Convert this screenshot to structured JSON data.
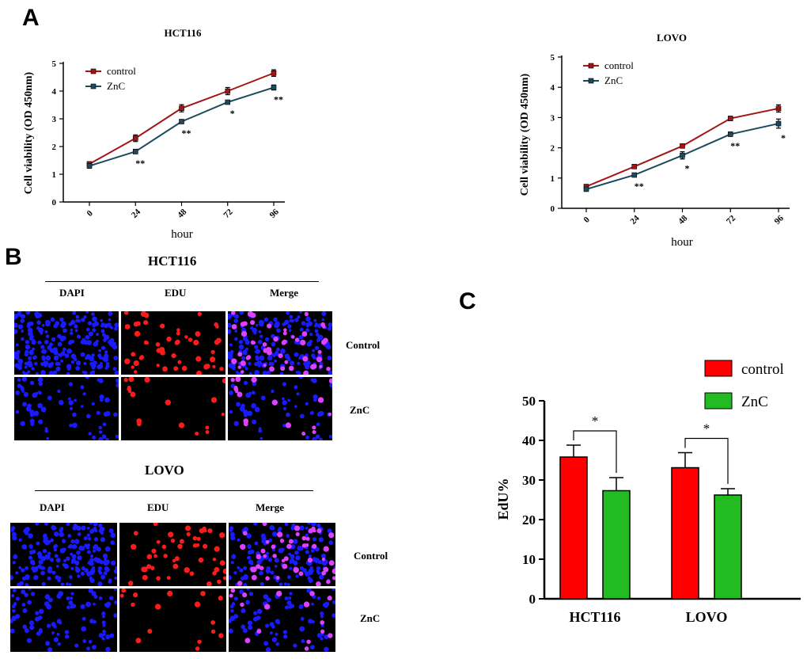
{
  "panels": {
    "a": "A",
    "b": "B",
    "c": "C"
  },
  "colors": {
    "control_line": "#a31515",
    "znc_line": "#1c4a5e",
    "control_bar": "#ff0000",
    "znc_bar": "#22bb22",
    "dapi": "#1a1aff",
    "edu": "#ff1a1a",
    "merge": "#e040ff"
  },
  "chart_data": [
    {
      "type": "line",
      "title": "HCT116",
      "xlabel": "hour",
      "ylabel": "Cell viability (OD 450nm)",
      "x": [
        "0",
        "24",
        "48",
        "72",
        "96"
      ],
      "ylim": [
        0,
        5
      ],
      "yticks": [
        "0",
        "1",
        "2",
        "3",
        "4",
        "5"
      ],
      "series": [
        {
          "name": "control",
          "values": [
            1.37,
            2.3,
            3.38,
            4.0,
            4.65
          ],
          "errors": [
            0.08,
            0.12,
            0.13,
            0.13,
            0.12
          ]
        },
        {
          "name": "ZnC",
          "values": [
            1.3,
            1.82,
            2.9,
            3.6,
            4.13
          ],
          "errors": [
            0.08,
            0.08,
            0.07,
            0.06,
            0.09
          ]
        }
      ],
      "significance": [
        "",
        "**",
        "**",
        "*",
        "**"
      ],
      "legend": "top-left"
    },
    {
      "type": "line",
      "title": "LOVO",
      "xlabel": "hour",
      "ylabel": "Cell viability (OD 450nm)",
      "x": [
        "0",
        "24",
        "48",
        "72",
        "96"
      ],
      "ylim": [
        0,
        5
      ],
      "yticks": [
        "0",
        "1",
        "2",
        "3",
        "4",
        "5"
      ],
      "series": [
        {
          "name": "control",
          "values": [
            0.72,
            1.38,
            2.06,
            2.97,
            3.3
          ],
          "errors": [
            0.06,
            0.06,
            0.06,
            0.07,
            0.12
          ]
        },
        {
          "name": "ZnC",
          "values": [
            0.63,
            1.1,
            1.75,
            2.45,
            2.8
          ],
          "errors": [
            0.05,
            0.05,
            0.12,
            0.07,
            0.15
          ]
        }
      ],
      "significance": [
        "",
        "**",
        "*",
        "**",
        "*"
      ],
      "legend": "top-left"
    },
    {
      "type": "bar",
      "xlabel": "",
      "ylabel": "EdU%",
      "categories": [
        "HCT116",
        "LOVO"
      ],
      "ylim": [
        0,
        50
      ],
      "yticks": [
        "0",
        "10",
        "20",
        "30",
        "40",
        "50"
      ],
      "series": [
        {
          "name": "control",
          "values": [
            35.8,
            33.1
          ],
          "errors": [
            3.0,
            3.8
          ]
        },
        {
          "name": "ZnC",
          "values": [
            27.3,
            26.2
          ],
          "errors": [
            3.3,
            1.6
          ]
        }
      ],
      "significance": [
        "*",
        "*"
      ],
      "legend": "top-right"
    }
  ],
  "microscopy": {
    "hct116": {
      "title": "HCT116",
      "columns": [
        "DAPI",
        "EDU",
        "Merge"
      ],
      "rows": [
        "Control",
        "ZnC"
      ]
    },
    "lovo": {
      "title": "LOVO",
      "columns": [
        "DAPI",
        "EDU",
        "Merge"
      ],
      "rows": [
        "Control",
        "ZnC"
      ]
    }
  }
}
